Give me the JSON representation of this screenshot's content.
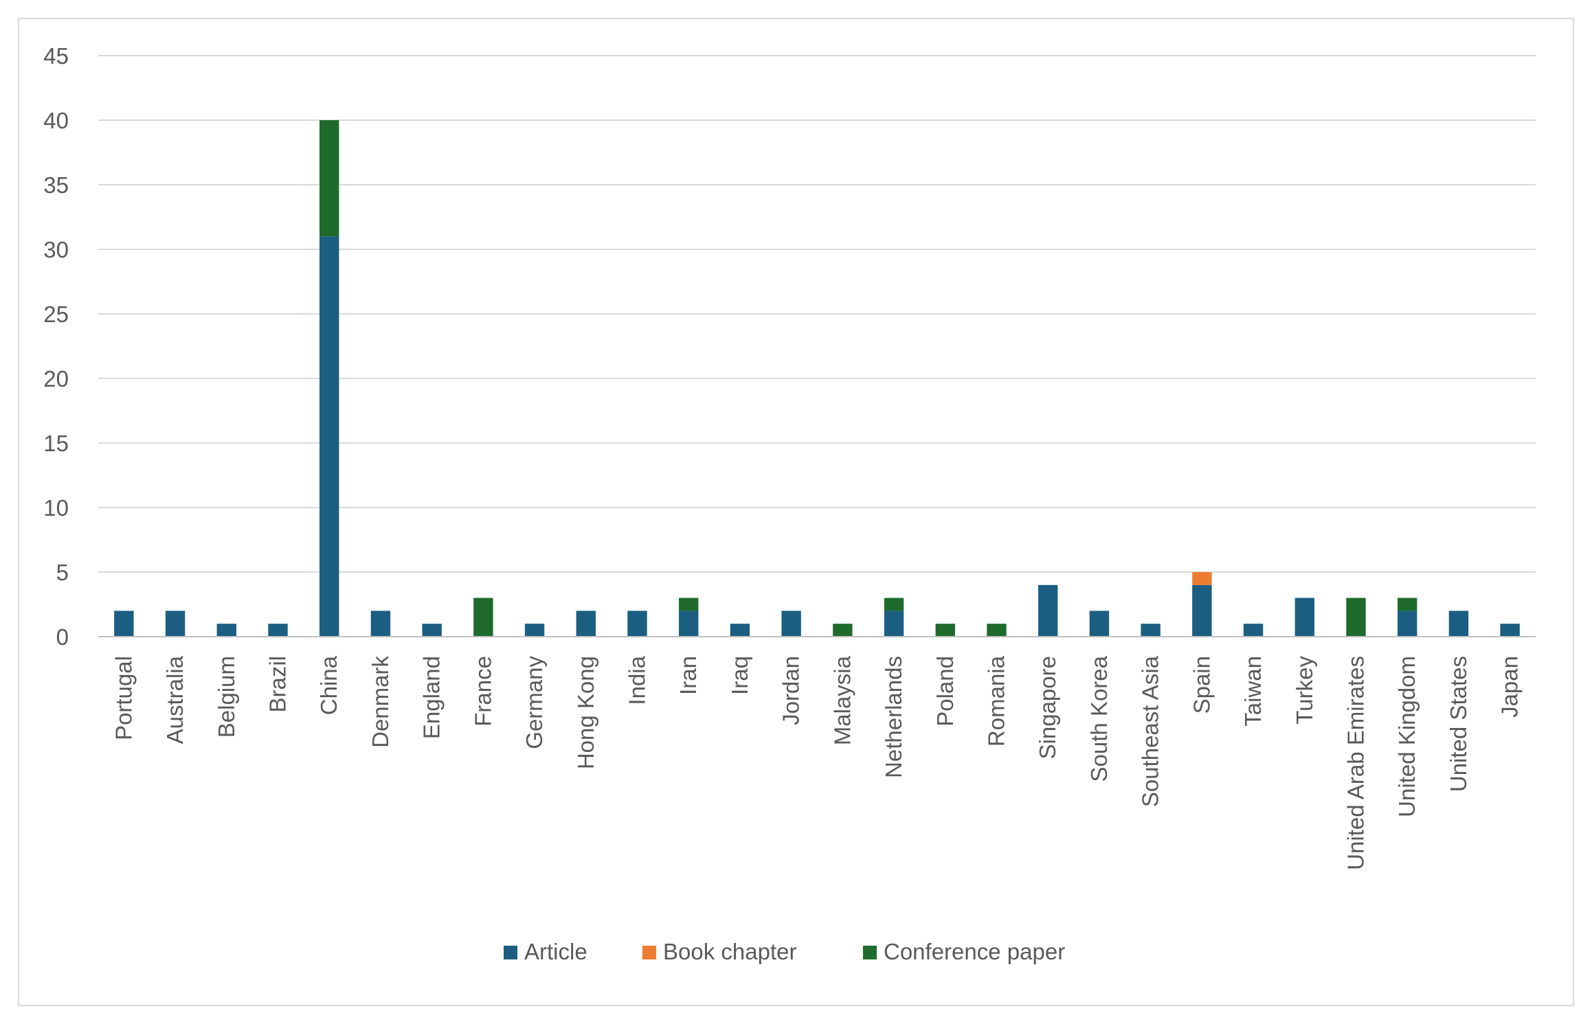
{
  "chart_data": {
    "type": "bar",
    "stacked": true,
    "title": "",
    "xlabel": "",
    "ylabel": "",
    "ylim": [
      0,
      45
    ],
    "yticks": [
      0,
      5,
      10,
      15,
      20,
      25,
      30,
      35,
      40,
      45
    ],
    "grid": true,
    "legend_position": "bottom",
    "categories": [
      "Portugal",
      "Australia",
      "Belgium",
      "Brazil",
      "China",
      "Denmark",
      "England",
      "France",
      "Germany",
      "Hong Kong",
      "India",
      "Iran",
      "Iraq",
      "Jordan",
      "Malaysia",
      "Netherlands",
      "Poland",
      "Romania",
      "Singapore",
      "South Korea",
      "Southeast Asia",
      "Spain",
      "Taiwan",
      "Turkey",
      "United Arab Emirates",
      "United Kingdom",
      "United States",
      "Japan"
    ],
    "series": [
      {
        "name": "Article",
        "color": "#1b5e82",
        "values": [
          2,
          2,
          1,
          1,
          31,
          2,
          1,
          0,
          1,
          2,
          2,
          2,
          1,
          2,
          0,
          2,
          0,
          0,
          4,
          2,
          1,
          4,
          1,
          3,
          0,
          2,
          2,
          1
        ]
      },
      {
        "name": "Book chapter",
        "color": "#ed7d31",
        "values": [
          0,
          0,
          0,
          0,
          0,
          0,
          0,
          0,
          0,
          0,
          0,
          0,
          0,
          0,
          0,
          0,
          0,
          0,
          0,
          0,
          0,
          1,
          0,
          0,
          0,
          0,
          0,
          0
        ]
      },
      {
        "name": "Conference paper",
        "color": "#1e6b2b",
        "values": [
          0,
          0,
          0,
          0,
          9,
          0,
          0,
          3,
          0,
          0,
          0,
          1,
          0,
          0,
          1,
          1,
          1,
          1,
          0,
          0,
          0,
          0,
          0,
          0,
          3,
          1,
          0,
          0
        ]
      }
    ]
  }
}
